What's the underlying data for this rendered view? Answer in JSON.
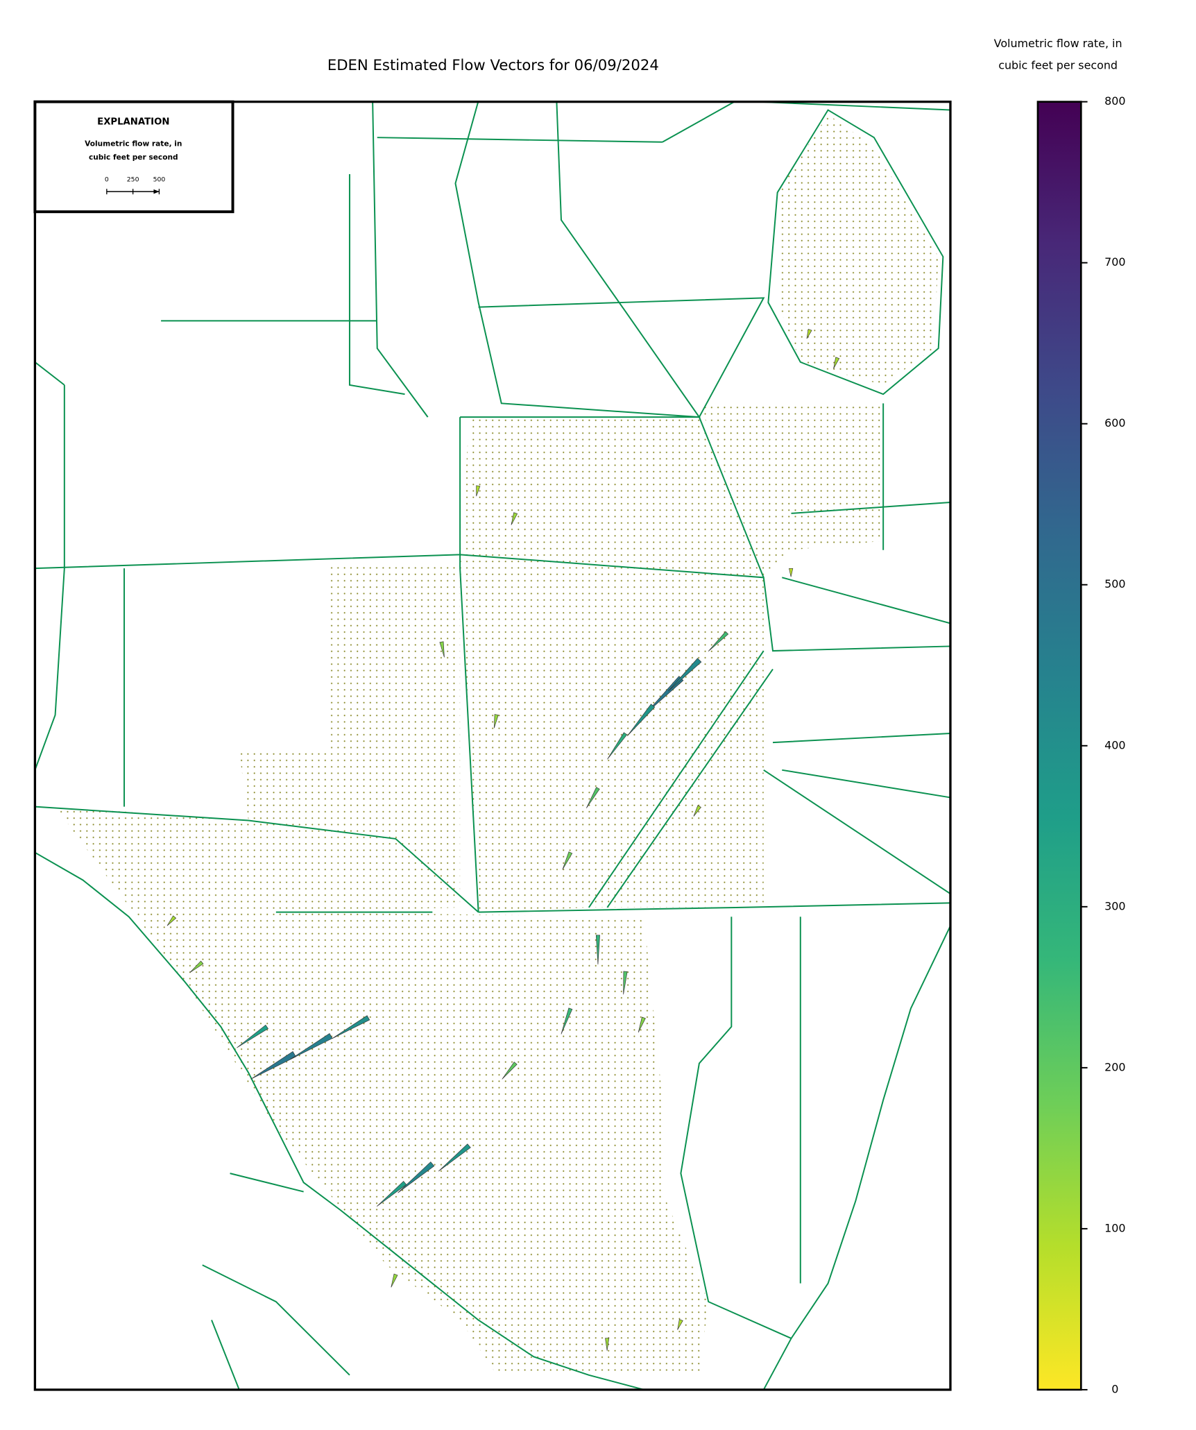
{
  "title": "EDEN Estimated Flow Vectors for 06/09/2024",
  "explanation": {
    "heading": "EXPLANATION",
    "label_lines": [
      "Volumetric flow rate, in",
      "cubic feet per second"
    ],
    "scale_ticks": [
      0,
      250,
      500
    ]
  },
  "colorbar": {
    "label_lines": [
      "Volumetric flow rate, in",
      "cubic feet per second"
    ],
    "lim": [
      0,
      800
    ],
    "ticks": [
      0,
      100,
      200,
      300,
      400,
      500,
      600,
      700,
      800
    ],
    "colors": [
      "#fde725",
      "#b5de2b",
      "#6ece58",
      "#35b779",
      "#1f9e89",
      "#26828e",
      "#31688e",
      "#3e4989",
      "#482878",
      "#440154"
    ]
  },
  "map": {
    "lon_extent": [
      -81.45,
      -80.25
    ],
    "lat_extent": [
      25.15,
      26.85
    ]
  },
  "vectors": {
    "lon": [
      -80.603,
      -80.579,
      -80.64,
      -80.676,
      -80.543,
      -80.712,
      -80.748,
      -80.82,
      -80.869,
      -80.917,
      -80.845,
      -80.579,
      -81.11,
      -81.062,
      -81.013,
      -81.146,
      -80.929,
      -80.881,
      -80.965,
      -80.748,
      -80.676,
      -80.82,
      -81.231,
      -81.267,
      -80.398,
      -80.434,
      -80.7,
      -80.603,
      -80.977,
      -80.459,
      -80.712,
      -80.652
    ],
    "lat": [
      26.089,
      26.113,
      26.053,
      26.016,
      26.149,
      25.944,
      25.859,
      26.307,
      26.343,
      26.137,
      26.041,
      25.92,
      25.593,
      25.617,
      25.641,
      25.629,
      25.448,
      25.472,
      25.423,
      25.653,
      25.702,
      25.581,
      25.714,
      25.774,
      26.512,
      26.549,
      25.218,
      25.242,
      25.302,
      26.234,
      25.75,
      25.641
    ],
    "magnitude": [
      480,
      420,
      380,
      300,
      250,
      220,
      180,
      120,
      100,
      150,
      130,
      110,
      480,
      450,
      400,
      350,
      430,
      380,
      350,
      260,
      220,
      200,
      150,
      110,
      110,
      90,
      120,
      100,
      130,
      80,
      280,
      150
    ],
    "direction": [
      225,
      225,
      220,
      215,
      225,
      210,
      205,
      200,
      190,
      170,
      190,
      210,
      240,
      240,
      240,
      235,
      230,
      230,
      230,
      200,
      185,
      220,
      230,
      220,
      200,
      200,
      180,
      200,
      200,
      180,
      180,
      200
    ]
  }
}
